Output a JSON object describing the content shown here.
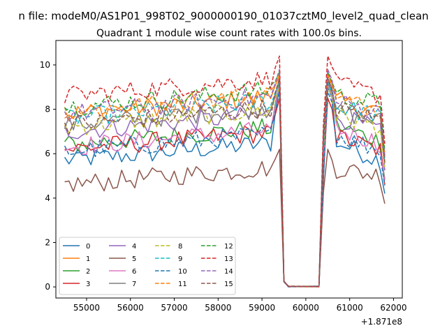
{
  "chart_data": {
    "type": "line",
    "suptitle": "n file: modeM0/AS1P01_998T02_9000000190_01037cztM0_level2_quad_clean",
    "title": "Quadrant 1 module wise count rates with 100.0s bins.",
    "x_offset_label": "+1.871e8",
    "xlim": [
      54300,
      62200
    ],
    "ylim": [
      -0.5,
      11.1
    ],
    "xticks": [
      55000,
      56000,
      57000,
      58000,
      59000,
      60000,
      61000,
      62000
    ],
    "xtick_labels": [
      "55000",
      "56000",
      "57000",
      "58000",
      "59000",
      "60000",
      "61000",
      "62000"
    ],
    "yticks": [
      0,
      2,
      4,
      6,
      8,
      10
    ],
    "ytick_labels": [
      "0",
      "2",
      "4",
      "6",
      "8",
      "10"
    ],
    "time_grid": {
      "seg1_start": 54500,
      "seg1_end": 59400,
      "step": 100,
      "seg2_start": 60400,
      "seg2_end": 61800
    },
    "transition_points": [
      [
        59500,
        0.25
      ],
      [
        59600,
        0.02
      ],
      [
        60300,
        0.02
      ]
    ],
    "legend": {
      "position": "lower-left",
      "columns": 4
    },
    "series": [
      {
        "name": "0",
        "color": "#1f77b4",
        "dash": "solid",
        "level1": 5.7,
        "level2": 5.6,
        "peak": 9.0
      },
      {
        "name": "1",
        "color": "#ff7f0e",
        "dash": "solid",
        "level1": 7.8,
        "level2": 7.9,
        "peak": 9.6
      },
      {
        "name": "2",
        "color": "#2ca02c",
        "dash": "solid",
        "level1": 6.4,
        "level2": 6.5,
        "peak": 9.2
      },
      {
        "name": "3",
        "color": "#d62728",
        "dash": "solid",
        "level1": 6.2,
        "level2": 6.1,
        "peak": 8.5
      },
      {
        "name": "4",
        "color": "#9467bd",
        "dash": "solid",
        "level1": 7.0,
        "level2": 7.0,
        "peak": 9.4
      },
      {
        "name": "5",
        "color": "#8c564b",
        "dash": "solid",
        "level1": 4.6,
        "level2": 5.0,
        "peak": 6.2
      },
      {
        "name": "6",
        "color": "#e377c2",
        "dash": "solid",
        "level1": 6.3,
        "level2": 6.4,
        "peak": 9.1
      },
      {
        "name": "7",
        "color": "#7f7f7f",
        "dash": "solid",
        "level1": 7.3,
        "level2": 7.4,
        "peak": 9.3
      },
      {
        "name": "8",
        "color": "#bcbd22",
        "dash": "dashed",
        "level1": 7.2,
        "level2": 7.2,
        "peak": 9.0
      },
      {
        "name": "9",
        "color": "#17becf",
        "dash": "dashed",
        "level1": 7.6,
        "level2": 7.7,
        "peak": 9.2
      },
      {
        "name": "10",
        "color": "#1f77b4",
        "dash": "dashed",
        "level1": 6.1,
        "level2": 6.1,
        "peak": 8.8
      },
      {
        "name": "11",
        "color": "#ff7f0e",
        "dash": "dashed",
        "level1": 7.9,
        "level2": 8.0,
        "peak": 9.5
      },
      {
        "name": "12",
        "color": "#2ca02c",
        "dash": "dashed",
        "level1": 8.1,
        "level2": 8.2,
        "peak": 9.7
      },
      {
        "name": "13",
        "color": "#d62728",
        "dash": "dashed",
        "level1": 8.6,
        "level2": 8.6,
        "peak": 10.4
      },
      {
        "name": "14",
        "color": "#9467bd",
        "dash": "dashed",
        "level1": 7.8,
        "level2": 7.8,
        "peak": 9.8
      },
      {
        "name": "15",
        "color": "#8c564b",
        "dash": "dashed",
        "level1": 7.3,
        "level2": 7.5,
        "peak": 9.4
      }
    ]
  }
}
